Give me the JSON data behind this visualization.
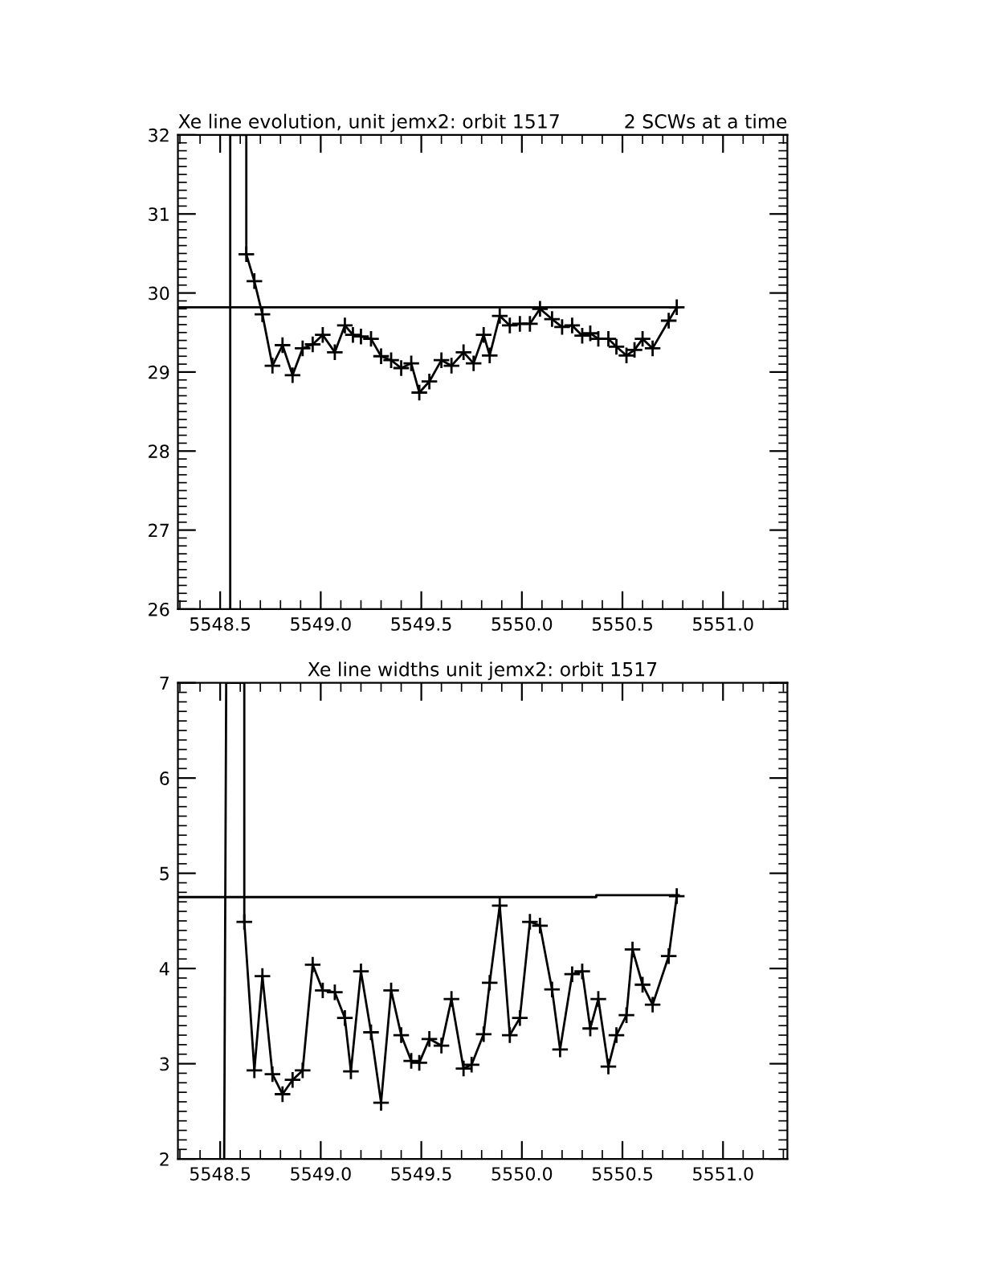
{
  "chart_data": [
    {
      "type": "line",
      "title": "Xe line evolution, unit jemx2: orbit 1517",
      "subtitle": "2 SCWs at a time",
      "xlim": [
        5548.29,
        5551.32
      ],
      "ylim": [
        26,
        32
      ],
      "xticks": [
        {
          "value": 5548.5,
          "label": "5548.5"
        },
        {
          "value": 5549.0,
          "label": "5549.0"
        },
        {
          "value": 5549.5,
          "label": "5549.5"
        },
        {
          "value": 5550.0,
          "label": "5550.0"
        },
        {
          "value": 5550.5,
          "label": "5550.5"
        },
        {
          "value": 5551.0,
          "label": "5551.0"
        }
      ],
      "yticks": [
        26,
        27,
        28,
        29,
        30,
        31,
        32
      ],
      "grid": false,
      "legend": false,
      "series": [
        {
          "color": "#000000",
          "marker": "none",
          "x": [
            5548.55,
            5548.55,
            5548.63,
            5548.63
          ],
          "values": [
            26,
            32,
            32,
            30.49
          ]
        },
        {
          "color": "#000000",
          "marker": "cross",
          "x": [
            5548.63,
            5548.67,
            5548.71,
            5548.76,
            5548.81,
            5548.86,
            5548.91,
            5548.96,
            5549.01,
            5549.07,
            5549.12,
            5549.16,
            5549.2,
            5549.25,
            5549.3,
            5549.35,
            5549.4,
            5549.45,
            5549.49,
            5549.54,
            5549.6,
            5549.65,
            5549.71,
            5549.76,
            5549.81,
            5549.84,
            5549.89,
            5549.94,
            5549.99,
            5550.04,
            5550.09,
            5550.15,
            5550.2,
            5550.25,
            5550.3,
            5550.34,
            5550.38,
            5550.43,
            5550.47,
            5550.52,
            5550.56,
            5550.6,
            5550.65,
            5550.73,
            5550.77
          ],
          "values": [
            30.49,
            30.15,
            29.73,
            29.08,
            29.34,
            28.96,
            29.3,
            29.35,
            29.47,
            29.25,
            29.59,
            29.47,
            29.45,
            29.42,
            29.2,
            29.15,
            29.05,
            29.11,
            28.74,
            28.88,
            29.15,
            29.08,
            29.25,
            29.11,
            29.47,
            29.21,
            29.71,
            29.59,
            29.61,
            29.61,
            29.8,
            29.67,
            29.57,
            29.59,
            29.46,
            29.49,
            29.42,
            29.42,
            29.32,
            29.21,
            29.28,
            29.42,
            29.3,
            29.65,
            29.82
          ]
        },
        {
          "color": "#000000",
          "marker": "none",
          "x": [
            5548.29,
            5550.78
          ],
          "values": [
            29.82,
            29.82
          ]
        }
      ]
    },
    {
      "type": "line",
      "title": "Xe line widths unit jemx2: orbit 1517",
      "xlim": [
        5548.29,
        5551.32
      ],
      "ylim": [
        2,
        7
      ],
      "xticks": [
        {
          "value": 5548.5,
          "label": "5548.5"
        },
        {
          "value": 5549.0,
          "label": "5549.0"
        },
        {
          "value": 5549.5,
          "label": "5549.5"
        },
        {
          "value": 5550.0,
          "label": "5550.0"
        },
        {
          "value": 5550.5,
          "label": "5550.5"
        },
        {
          "value": 5551.0,
          "label": "5551.0"
        }
      ],
      "yticks": [
        2,
        3,
        4,
        5,
        6,
        7
      ],
      "grid": false,
      "legend": false,
      "series": [
        {
          "color": "#000000",
          "marker": "none",
          "x": [
            5548.52,
            5548.53,
            5548.62,
            5548.62
          ],
          "values": [
            2,
            7,
            7,
            4.49
          ]
        },
        {
          "color": "#000000",
          "marker": "cross",
          "x": [
            5548.62,
            5548.67,
            5548.71,
            5548.76,
            5548.81,
            5548.86,
            5548.91,
            5548.96,
            5549.01,
            5549.07,
            5549.12,
            5549.15,
            5549.2,
            5549.25,
            5549.3,
            5549.35,
            5549.4,
            5549.45,
            5549.49,
            5549.54,
            5549.6,
            5549.65,
            5549.71,
            5549.75,
            5549.81,
            5549.84,
            5549.89,
            5549.94,
            5549.99,
            5550.04,
            5550.09,
            5550.15,
            5550.19,
            5550.25,
            5550.3,
            5550.34,
            5550.38,
            5550.43,
            5550.47,
            5550.52,
            5550.55,
            5550.6,
            5550.65,
            5550.73,
            5550.77
          ],
          "values": [
            4.49,
            2.93,
            3.92,
            2.89,
            2.68,
            2.83,
            2.93,
            4.04,
            3.77,
            3.75,
            3.48,
            2.92,
            3.97,
            3.33,
            2.59,
            3.77,
            3.3,
            3.03,
            3.01,
            3.26,
            3.19,
            3.68,
            2.95,
            2.99,
            3.31,
            3.85,
            4.66,
            3.3,
            3.48,
            4.49,
            4.45,
            3.78,
            3.15,
            3.94,
            3.97,
            3.37,
            3.68,
            2.97,
            3.3,
            3.51,
            4.2,
            3.83,
            3.62,
            4.13,
            4.76
          ]
        },
        {
          "color": "#000000",
          "marker": "none",
          "x": [
            5548.29,
            5550.37,
            5550.37,
            5550.78
          ],
          "values": [
            4.75,
            4.75,
            4.77,
            4.77
          ]
        }
      ]
    }
  ]
}
